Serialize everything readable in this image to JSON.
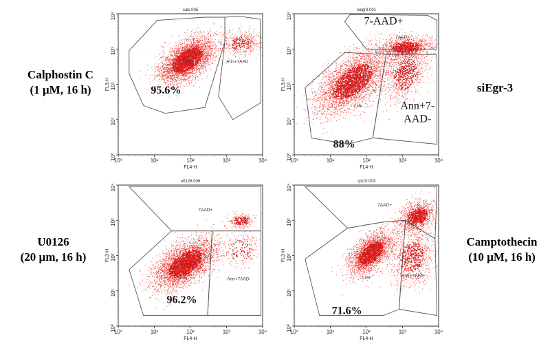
{
  "side_labels": {
    "calphostin": [
      "Calphostin C",
      "(1 µM, 16 h)"
    ],
    "siegr3": [
      "siEgr-3"
    ],
    "u0126": [
      "U0126",
      "(20 µm, 16 h)"
    ],
    "camptothecin": [
      "Camptothecin",
      "(10 µM, 16 h)"
    ]
  },
  "colors": {
    "dots": "#e8302a",
    "dot_core": "#d81c1c",
    "gate": "#555555",
    "frame": "#333333"
  },
  "chart_data": [
    {
      "type": "scatter",
      "title": "calc.005",
      "xlabel": "FL4-H",
      "ylabel": "FL3-H",
      "xscale": "log",
      "yscale": "log",
      "xlim": [
        1,
        10000
      ],
      "ylim": [
        1,
        10000
      ],
      "x_ticks": [
        "10⁰",
        "10¹",
        "10²",
        "10³",
        "10⁴"
      ],
      "y_ticks": [
        "10⁰",
        "10¹",
        "10²",
        "10³",
        "10⁴"
      ],
      "clusters": [
        {
          "gate": "Live",
          "center": [
            80,
            500
          ],
          "spread": [
            0.38,
            0.32
          ],
          "count": 3600,
          "corr": 0.55
        },
        {
          "gate": "Ann+7AAD-",
          "center": [
            2500,
            1500
          ],
          "spread": [
            0.3,
            0.18
          ],
          "count": 380,
          "corr": 0.1
        }
      ],
      "gates": [
        {
          "label": "Live",
          "polygon": [
            [
              2,
              900
            ],
            [
              12,
              6500
            ],
            [
              250,
              8000
            ],
            [
              900,
              8000
            ],
            [
              900,
              1600
            ],
            [
              250,
              22
            ],
            [
              20,
              15
            ],
            [
              5,
              25
            ],
            [
              2,
              200
            ]
          ],
          "label_at": [
            80,
            420
          ]
        },
        {
          "label": "Ann+7AAD",
          "polygon": [
            [
              900,
              1600
            ],
            [
              900,
              8000
            ],
            [
              2200,
              8500
            ],
            [
              8500,
              7000
            ],
            [
              9000,
              30
            ],
            [
              1500,
              10
            ],
            [
              600,
              45
            ],
            [
              900,
              1600
            ]
          ],
          "label_at": [
            2000,
            400
          ]
        }
      ],
      "annotation": {
        "text": "95.6%",
        "at": [
          8,
          55
        ]
      }
    },
    {
      "type": "scatter",
      "title": "siegr3.001",
      "xlabel": "FL4-H",
      "ylabel": "FL3-H",
      "xscale": "log",
      "yscale": "log",
      "xlim": [
        1,
        10000
      ],
      "ylim": [
        1,
        10000
      ],
      "x_ticks": [
        "10⁰",
        "10¹",
        "10²",
        "10³",
        "10⁴"
      ],
      "y_ticks": [
        "10⁰",
        "10¹",
        "10²",
        "10³",
        "10⁴"
      ],
      "clusters": [
        {
          "gate": "Live",
          "center": [
            40,
            120
          ],
          "spread": [
            0.5,
            0.45
          ],
          "count": 3600,
          "corr": 0.6
        },
        {
          "gate": "7AAD+",
          "center": [
            1200,
            1100
          ],
          "spread": [
            0.35,
            0.15
          ],
          "count": 1200,
          "corr": 0.2
        },
        {
          "gate": "Ann+7AAD-",
          "center": [
            1200,
            200
          ],
          "spread": [
            0.3,
            0.4
          ],
          "count": 900,
          "corr": 0.3
        }
      ],
      "gates": [
        {
          "label": "Live",
          "polygon": [
            [
              2,
              80
            ],
            [
              25,
              800
            ],
            [
              350,
              700
            ],
            [
              150,
              3
            ],
            [
              30,
              2
            ],
            [
              3,
              3
            ],
            [
              2,
              80
            ]
          ],
          "label_at": [
            60,
            22
          ]
        },
        {
          "label": "7-AAD+",
          "polygon": [
            [
              25,
              6000
            ],
            [
              100,
              1000
            ],
            [
              9000,
              1000
            ],
            [
              9000,
              6500
            ],
            [
              5000,
              9000
            ],
            [
              35,
              9500
            ],
            [
              25,
              6000
            ]
          ],
          "label_at": [
            300,
            5000
          ]
        },
        {
          "label": "7AAD+",
          "polygon": [
            [
              25,
              6000
            ],
            [
              100,
              1000
            ],
            [
              9000,
              1000
            ],
            [
              9000,
              6500
            ],
            [
              5000,
              9000
            ],
            [
              35,
              9500
            ],
            [
              25,
              6000
            ]
          ],
          "label_at": [
            1000,
            2000
          ]
        },
        {
          "label": "Ann+7-AAD-",
          "polygon": [
            [
              350,
              700
            ],
            [
              150,
              3
            ],
            [
              9000,
              2
            ],
            [
              9000,
              700
            ],
            [
              350,
              700
            ]
          ],
          "label_at": [
            2600,
            20
          ]
        }
      ],
      "annotation": {
        "text": "88%",
        "at": [
          12,
          1.6
        ]
      }
    },
    {
      "type": "scatter",
      "title": "u0126.006",
      "xlabel": "FL4-H",
      "ylabel": "FL3-H",
      "xscale": "log",
      "yscale": "log",
      "xlim": [
        1,
        10000
      ],
      "ylim": [
        1,
        10000
      ],
      "x_ticks": [
        "10⁰",
        "10¹",
        "10²",
        "10³",
        "10⁴"
      ],
      "y_ticks": [
        "10⁰",
        "10¹",
        "10²",
        "10³",
        "10⁴"
      ],
      "clusters": [
        {
          "gate": "Live",
          "center": [
            70,
            60
          ],
          "spread": [
            0.42,
            0.35
          ],
          "count": 3800,
          "corr": 0.55
        },
        {
          "gate": "7AAD+",
          "center": [
            2500,
            1000
          ],
          "spread": [
            0.2,
            0.1
          ],
          "count": 260,
          "corr": 0.1
        },
        {
          "gate": "Ann+7AAD-",
          "center": [
            2500,
            150
          ],
          "spread": [
            0.3,
            0.3
          ],
          "count": 220,
          "corr": 0.1
        }
      ],
      "gates": [
        {
          "label": "Live",
          "polygon": [
            [
              2,
              40
            ],
            [
              30,
              500
            ],
            [
              400,
              500
            ],
            [
              300,
              2
            ],
            [
              5,
              2
            ],
            [
              2,
              40
            ]
          ],
          "label_at": [
            60,
            22
          ]
        },
        {
          "label": "7AAD+",
          "polygon": [
            [
              2,
              9000
            ],
            [
              30,
              500
            ],
            [
              9000,
              500
            ],
            [
              9000,
              9000
            ],
            [
              2,
              9000
            ]
          ],
          "label_at": [
            260,
            1800
          ]
        },
        {
          "label": "Ann+7AAD-",
          "polygon": [
            [
              400,
              500
            ],
            [
              300,
              2
            ],
            [
              9000,
              2
            ],
            [
              9000,
              500
            ],
            [
              400,
              500
            ]
          ],
          "label_at": [
            2200,
            20
          ]
        }
      ],
      "annotation": {
        "text": "96.2%",
        "at": [
          22,
          4.5
        ]
      }
    },
    {
      "type": "scatter",
      "title": "cpt10.003",
      "xlabel": "FL4-H",
      "ylabel": "FL3-H",
      "xscale": "log",
      "yscale": "log",
      "xlim": [
        1,
        10000
      ],
      "ylim": [
        1,
        10000
      ],
      "x_ticks": [
        "10⁰",
        "10¹",
        "10²",
        "10³",
        "10⁴"
      ],
      "y_ticks": [
        "10⁰",
        "10¹",
        "10²",
        "10³",
        "10⁴"
      ],
      "clusters": [
        {
          "gate": "Live",
          "center": [
            130,
            120
          ],
          "spread": [
            0.3,
            0.3
          ],
          "count": 2600,
          "corr": 0.55
        },
        {
          "gate": "7AAD+",
          "center": [
            2500,
            1300
          ],
          "spread": [
            0.25,
            0.22
          ],
          "count": 1200,
          "corr": 0.3
        },
        {
          "gate": "Ann+7AAD-",
          "center": [
            1800,
            90
          ],
          "spread": [
            0.3,
            0.4
          ],
          "count": 900,
          "corr": 0.2
        }
      ],
      "gates": [
        {
          "label": "Live",
          "polygon": [
            [
              2,
              80
            ],
            [
              30,
              600
            ],
            [
              300,
              900
            ],
            [
              1200,
              1000
            ],
            [
              800,
              3
            ],
            [
              300,
              2
            ],
            [
              5,
              2
            ],
            [
              2,
              80
            ]
          ],
          "label_at": [
            100,
            22
          ]
        },
        {
          "label": "7AAD+",
          "polygon": [
            [
              2,
              9000
            ],
            [
              30,
              600
            ],
            [
              300,
              900
            ],
            [
              1200,
              1000
            ],
            [
              8000,
              300
            ],
            [
              9000,
              9000
            ],
            [
              2,
              9000
            ]
          ],
          "label_at": [
            320,
            2500
          ]
        },
        {
          "label": "Ann+7AAD-",
          "polygon": [
            [
              1200,
              1000
            ],
            [
              800,
              3
            ],
            [
              9000,
              2
            ],
            [
              8000,
              300
            ],
            [
              1200,
              1000
            ]
          ],
          "label_at": [
            2000,
            25
          ]
        }
      ],
      "annotation": {
        "text": "71.6%",
        "at": [
          11,
          2.2
        ]
      }
    }
  ]
}
